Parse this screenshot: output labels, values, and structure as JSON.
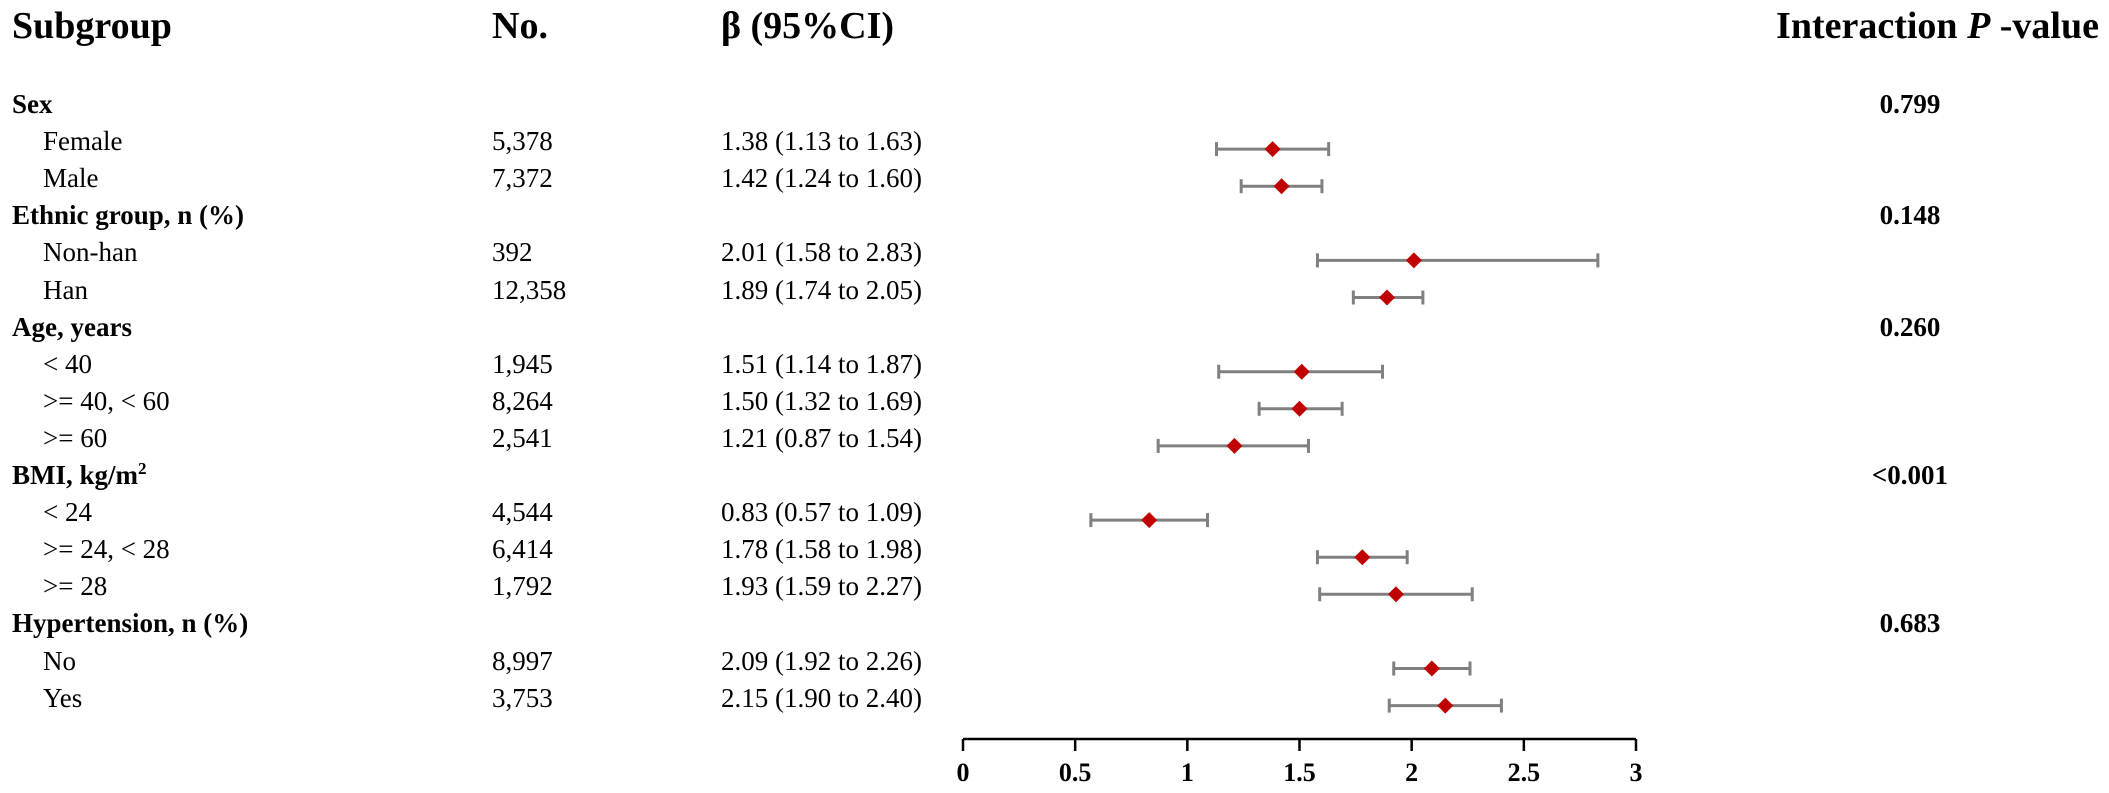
{
  "headers": {
    "subgroup": "Subgroup",
    "no": "No.",
    "beta": "β (95%CI)",
    "interaction_prefix": "Interaction ",
    "interaction_italic": "P",
    "interaction_suffix": " -value"
  },
  "colors": {
    "point": "#C00000",
    "ci_line": "#808080",
    "axis": "#000000"
  },
  "chart_data": {
    "type": "forest",
    "title": "",
    "xlabel": "",
    "xlim": [
      0,
      3
    ],
    "xticks": [
      0,
      0.5,
      1,
      1.5,
      2,
      2.5,
      3
    ],
    "xtick_labels": [
      "0",
      "0.5",
      "1",
      "1.5",
      "2",
      "2.5",
      "3"
    ],
    "groups": [
      {
        "name": "Sex",
        "p_value": "0.799",
        "rows": [
          {
            "label": "Female",
            "n": "5,378",
            "ci_text": "1.38 (1.13 to 1.63)",
            "beta": 1.38,
            "lower": 1.13,
            "upper": 1.63
          },
          {
            "label": "Male",
            "n": "7,372",
            "ci_text": "1.42 (1.24 to 1.60)",
            "beta": 1.42,
            "lower": 1.24,
            "upper": 1.6
          }
        ]
      },
      {
        "name": "Ethnic group, n (%)",
        "p_value": "0.148",
        "rows": [
          {
            "label": "Non-han",
            "n": "392",
            "ci_text": "2.01 (1.58 to 2.83)",
            "beta": 2.01,
            "lower": 1.58,
            "upper": 2.83
          },
          {
            "label": "Han",
            "n": "12,358",
            "ci_text": "1.89 (1.74 to 2.05)",
            "beta": 1.89,
            "lower": 1.74,
            "upper": 2.05
          }
        ]
      },
      {
        "name": "Age, years",
        "p_value": "0.260",
        "rows": [
          {
            "label": "< 40",
            "n": "1,945",
            "ci_text": "1.51 (1.14 to 1.87)",
            "beta": 1.51,
            "lower": 1.14,
            "upper": 1.87
          },
          {
            "label": ">= 40, < 60",
            "n": "8,264",
            "ci_text": "1.50 (1.32 to 1.69)",
            "beta": 1.5,
            "lower": 1.32,
            "upper": 1.69
          },
          {
            "label": ">= 60",
            "n": "2,541",
            "ci_text": "1.21 (0.87 to 1.54)",
            "beta": 1.21,
            "lower": 0.87,
            "upper": 1.54
          }
        ]
      },
      {
        "name": "BMI, kg/m",
        "name_sup": "2",
        "p_value": "<0.001",
        "rows": [
          {
            "label": "< 24",
            "n": "4,544",
            "ci_text": "0.83 (0.57 to 1.09)",
            "beta": 0.83,
            "lower": 0.57,
            "upper": 1.09
          },
          {
            "label": ">= 24, < 28",
            "n": "6,414",
            "ci_text": "1.78 (1.58 to 1.98)",
            "beta": 1.78,
            "lower": 1.58,
            "upper": 1.98
          },
          {
            "label": ">= 28",
            "n": "1,792",
            "ci_text": "1.93 (1.59 to 2.27)",
            "beta": 1.93,
            "lower": 1.59,
            "upper": 2.27
          }
        ]
      },
      {
        "name": "Hypertension, n (%)",
        "p_value": "0.683",
        "rows": [
          {
            "label": "No",
            "n": "8,997",
            "ci_text": "2.09 (1.92 to 2.26)",
            "beta": 2.09,
            "lower": 1.92,
            "upper": 2.26
          },
          {
            "label": "Yes",
            "n": "3,753",
            "ci_text": "2.15 (1.90 to 2.40)",
            "beta": 2.15,
            "lower": 1.9,
            "upper": 2.4
          }
        ]
      }
    ]
  }
}
